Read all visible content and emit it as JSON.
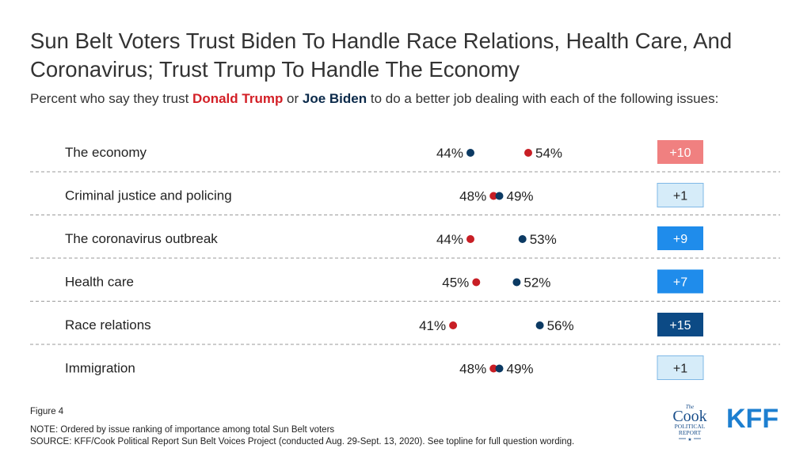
{
  "title": "Sun Belt Voters Trust Biden To Handle Race Relations, Health Care, And Coronavirus; Trust Trump To Handle The Economy",
  "subtitle": {
    "prefix": "Percent who say they trust ",
    "trump": "Donald Trump",
    "middle": " or ",
    "biden": "Joe Biden",
    "suffix": " to do a better job dealing with each of the following issues:"
  },
  "colors": {
    "trump": "#c81e25",
    "biden": "#0c3a63",
    "trump_lead_bg": "#f08080",
    "biden_lead_small_bg": "#d6ecf9",
    "biden_lead_mid_bg": "#1f8ceb",
    "biden_lead_large_bg": "#0c4a85"
  },
  "chart_data": {
    "type": "dot-plot",
    "series_names": [
      "Donald Trump",
      "Joe Biden"
    ],
    "categories": [
      "The economy",
      "Criminal justice and policing",
      "The coronavirus outbreak",
      "Health care",
      "Race relations",
      "Immigration"
    ],
    "series": [
      {
        "name": "Donald Trump",
        "values": [
          54,
          48,
          44,
          45,
          41,
          48
        ],
        "labels": [
          "54%",
          "48%",
          "44%",
          "45%",
          "41%",
          "48%"
        ]
      },
      {
        "name": "Joe Biden",
        "values": [
          44,
          49,
          53,
          52,
          56,
          49
        ],
        "labels": [
          "44%",
          "49%",
          "53%",
          "52%",
          "56%",
          "49%"
        ]
      }
    ],
    "gaps": [
      {
        "label": "+10",
        "leader": "Donald Trump"
      },
      {
        "label": "+1",
        "leader": "Joe Biden"
      },
      {
        "label": "+9",
        "leader": "Joe Biden"
      },
      {
        "label": "+7",
        "leader": "Joe Biden"
      },
      {
        "label": "+15",
        "leader": "Joe Biden"
      },
      {
        "label": "+1",
        "leader": "Joe Biden"
      }
    ],
    "grid": false
  },
  "footer": {
    "figure": "Figure 4",
    "note": "NOTE: Ordered by issue ranking of importance among total Sun Belt voters",
    "source": "SOURCE: KFF/Cook Political Report Sun Belt Voices Project (conducted Aug. 29-Sept. 13, 2020). See topline for full question wording."
  },
  "logos": {
    "cook_the": "The",
    "cook_name": "Cook",
    "cook_line1": "POLITICAL",
    "cook_line2": "REPORT",
    "cook_star": "★",
    "kff": "KFF"
  }
}
